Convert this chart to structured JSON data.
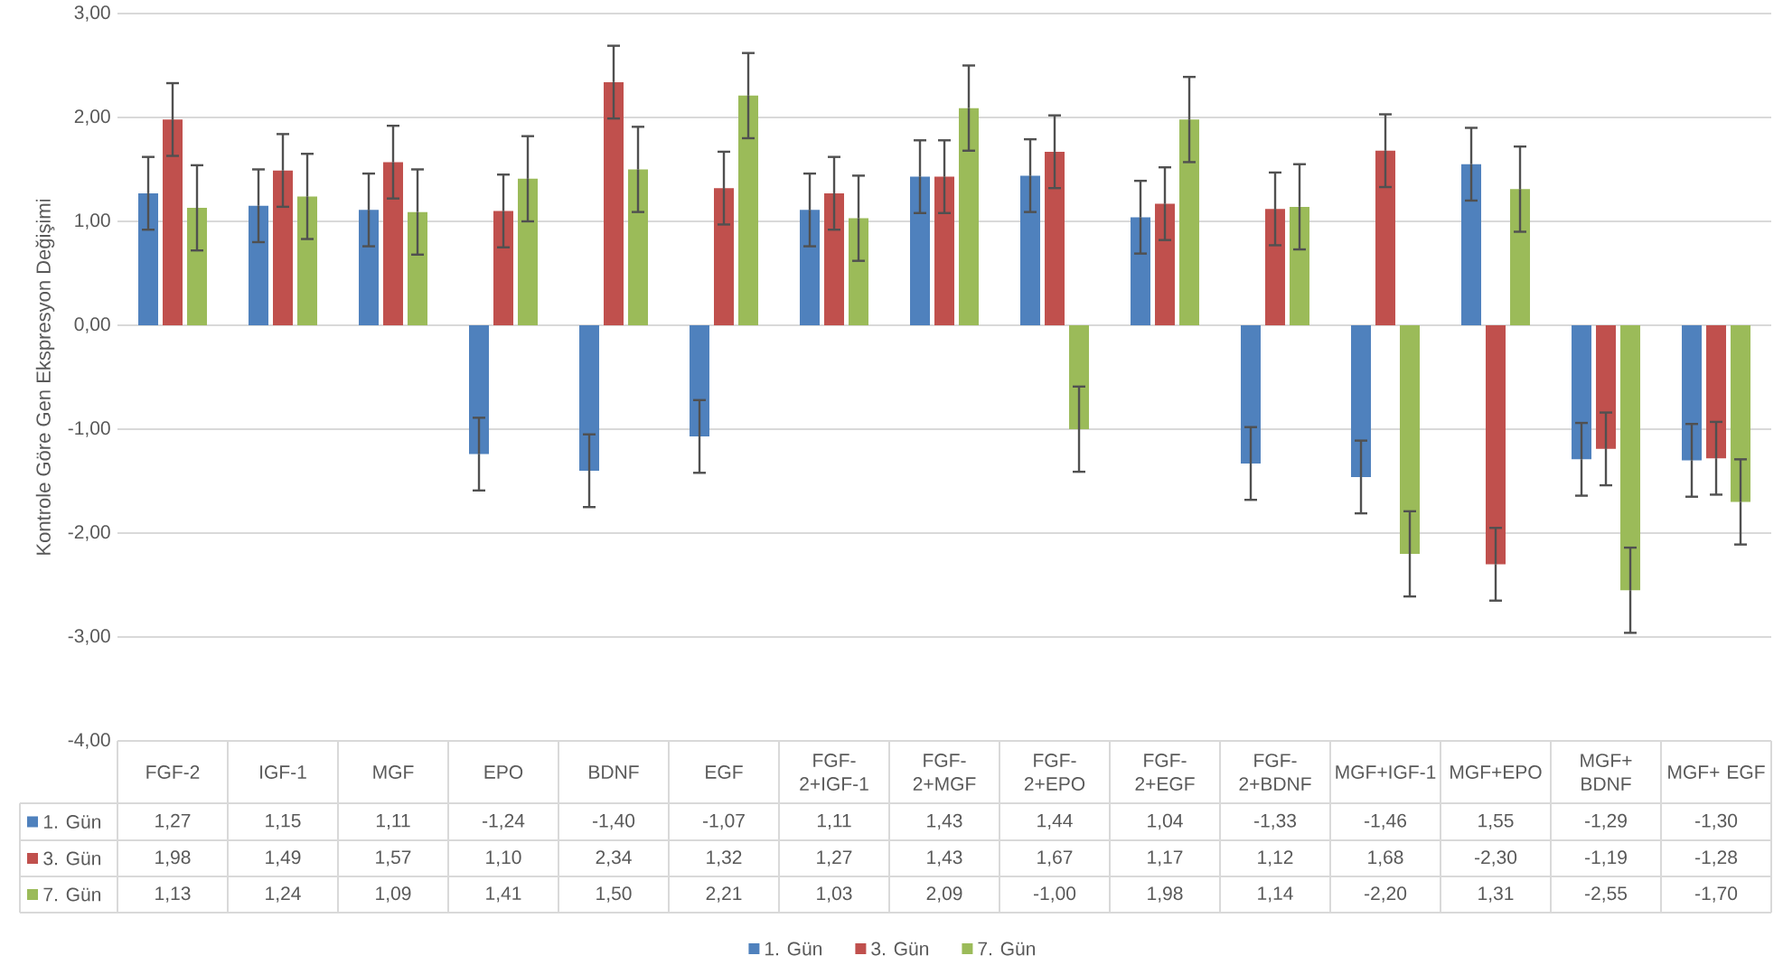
{
  "chart_data": {
    "type": "bar",
    "ylabel": "Kontrole Göre Gen Ekspresyon Değişimi",
    "categories": [
      "FGF-2",
      "IGF-1",
      "MGF",
      "EPO",
      "BDNF",
      "EGF",
      "FGF-2+IGF-1",
      "FGF-2+MGF",
      "FGF-2+EPO",
      "FGF-2+EGF",
      "FGF-2+BDNF",
      "MGF+IGF-1",
      "MGF+EPO",
      "MGF+ BDNF",
      "MGF+ EGF"
    ],
    "series": [
      {
        "name": "1. Gün",
        "color": "#4f81bd",
        "values": [
          1.27,
          1.15,
          1.11,
          -1.24,
          -1.4,
          -1.07,
          1.11,
          1.43,
          1.44,
          1.04,
          -1.33,
          -1.46,
          1.55,
          -1.29,
          -1.3
        ],
        "errors": [
          0.35,
          0.35,
          0.35,
          0.35,
          0.35,
          0.35,
          0.35,
          0.35,
          0.35,
          0.35,
          0.35,
          0.35,
          0.35,
          0.35,
          0.35
        ],
        "value_labels": [
          "1,27",
          "1,15",
          "1,11",
          "-1,24",
          "-1,40",
          "-1,07",
          "1,11",
          "1,43",
          "1,44",
          "1,04",
          "-1,33",
          "-1,46",
          "1,55",
          "-1,29",
          "-1,30"
        ]
      },
      {
        "name": "3. Gün",
        "color": "#c0504d",
        "values": [
          1.98,
          1.49,
          1.57,
          1.1,
          2.34,
          1.32,
          1.27,
          1.43,
          1.67,
          1.17,
          1.12,
          1.68,
          -2.3,
          -1.19,
          -1.28
        ],
        "errors": [
          0.35,
          0.35,
          0.35,
          0.35,
          0.35,
          0.35,
          0.35,
          0.35,
          0.35,
          0.35,
          0.35,
          0.35,
          0.35,
          0.35,
          0.35
        ],
        "value_labels": [
          "1,98",
          "1,49",
          "1,57",
          "1,10",
          "2,34",
          "1,32",
          "1,27",
          "1,43",
          "1,67",
          "1,17",
          "1,12",
          "1,68",
          "-2,30",
          "-1,19",
          "-1,28"
        ]
      },
      {
        "name": "7. Gün",
        "color": "#9bbb59",
        "values": [
          1.13,
          1.24,
          1.09,
          1.41,
          1.5,
          2.21,
          1.03,
          2.09,
          -1.0,
          1.98,
          1.14,
          -2.2,
          1.31,
          -2.55,
          -1.7
        ],
        "errors": [
          0.41,
          0.41,
          0.41,
          0.41,
          0.41,
          0.41,
          0.41,
          0.41,
          0.41,
          0.41,
          0.41,
          0.41,
          0.41,
          0.41,
          0.41
        ],
        "value_labels": [
          "1,13",
          "1,24",
          "1,09",
          "1,41",
          "1,50",
          "2,21",
          "1,03",
          "2,09",
          "-1,00",
          "1,98",
          "1,14",
          "-2,20",
          "1,31",
          "-2,55",
          "-1,70"
        ]
      }
    ],
    "ylim": [
      -4,
      3
    ],
    "yticks": [
      {
        "value": -4,
        "label": "-4,00"
      },
      {
        "value": -3,
        "label": "-3,00"
      },
      {
        "value": -2,
        "label": "-2,00"
      },
      {
        "value": -1,
        "label": "-1,00"
      },
      {
        "value": 0,
        "label": "0,00"
      },
      {
        "value": 1,
        "label": "1,00"
      },
      {
        "value": 2,
        "label": "2,00"
      },
      {
        "value": 3,
        "label": "3,00"
      }
    ],
    "grid": "y",
    "legend": "bottom"
  }
}
